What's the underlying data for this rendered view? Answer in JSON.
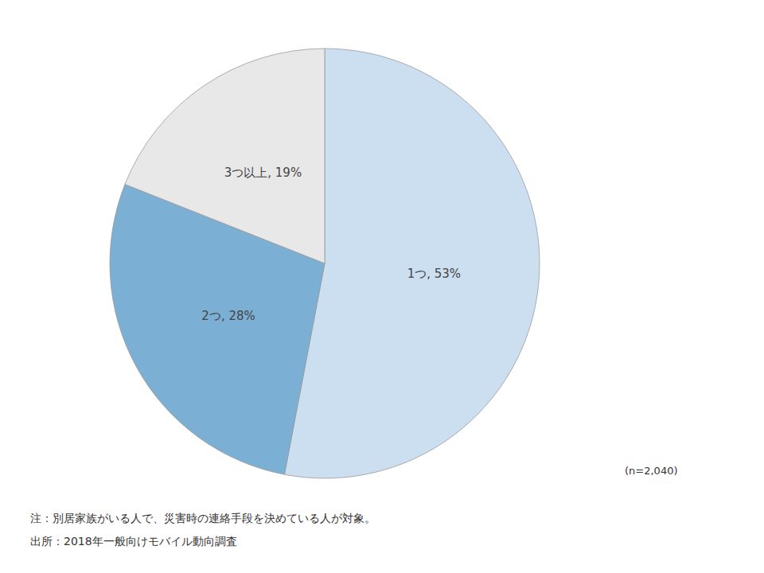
{
  "chart_data": {
    "type": "pie",
    "categories": [
      "1つ, 53%",
      "2つ, 28%",
      "3つ以上, 19%"
    ],
    "values": [
      53,
      28,
      19
    ],
    "colors": [
      "#ccdff0",
      "#7bafd4",
      "#e8e8e8"
    ],
    "annotations": [
      "(n=2,040)",
      "注：別居家族がいる人で、災害時の連絡手段を決めている人が対象。",
      "出所：2018年一般向けモバイル動向調査"
    ],
    "legend": false
  }
}
